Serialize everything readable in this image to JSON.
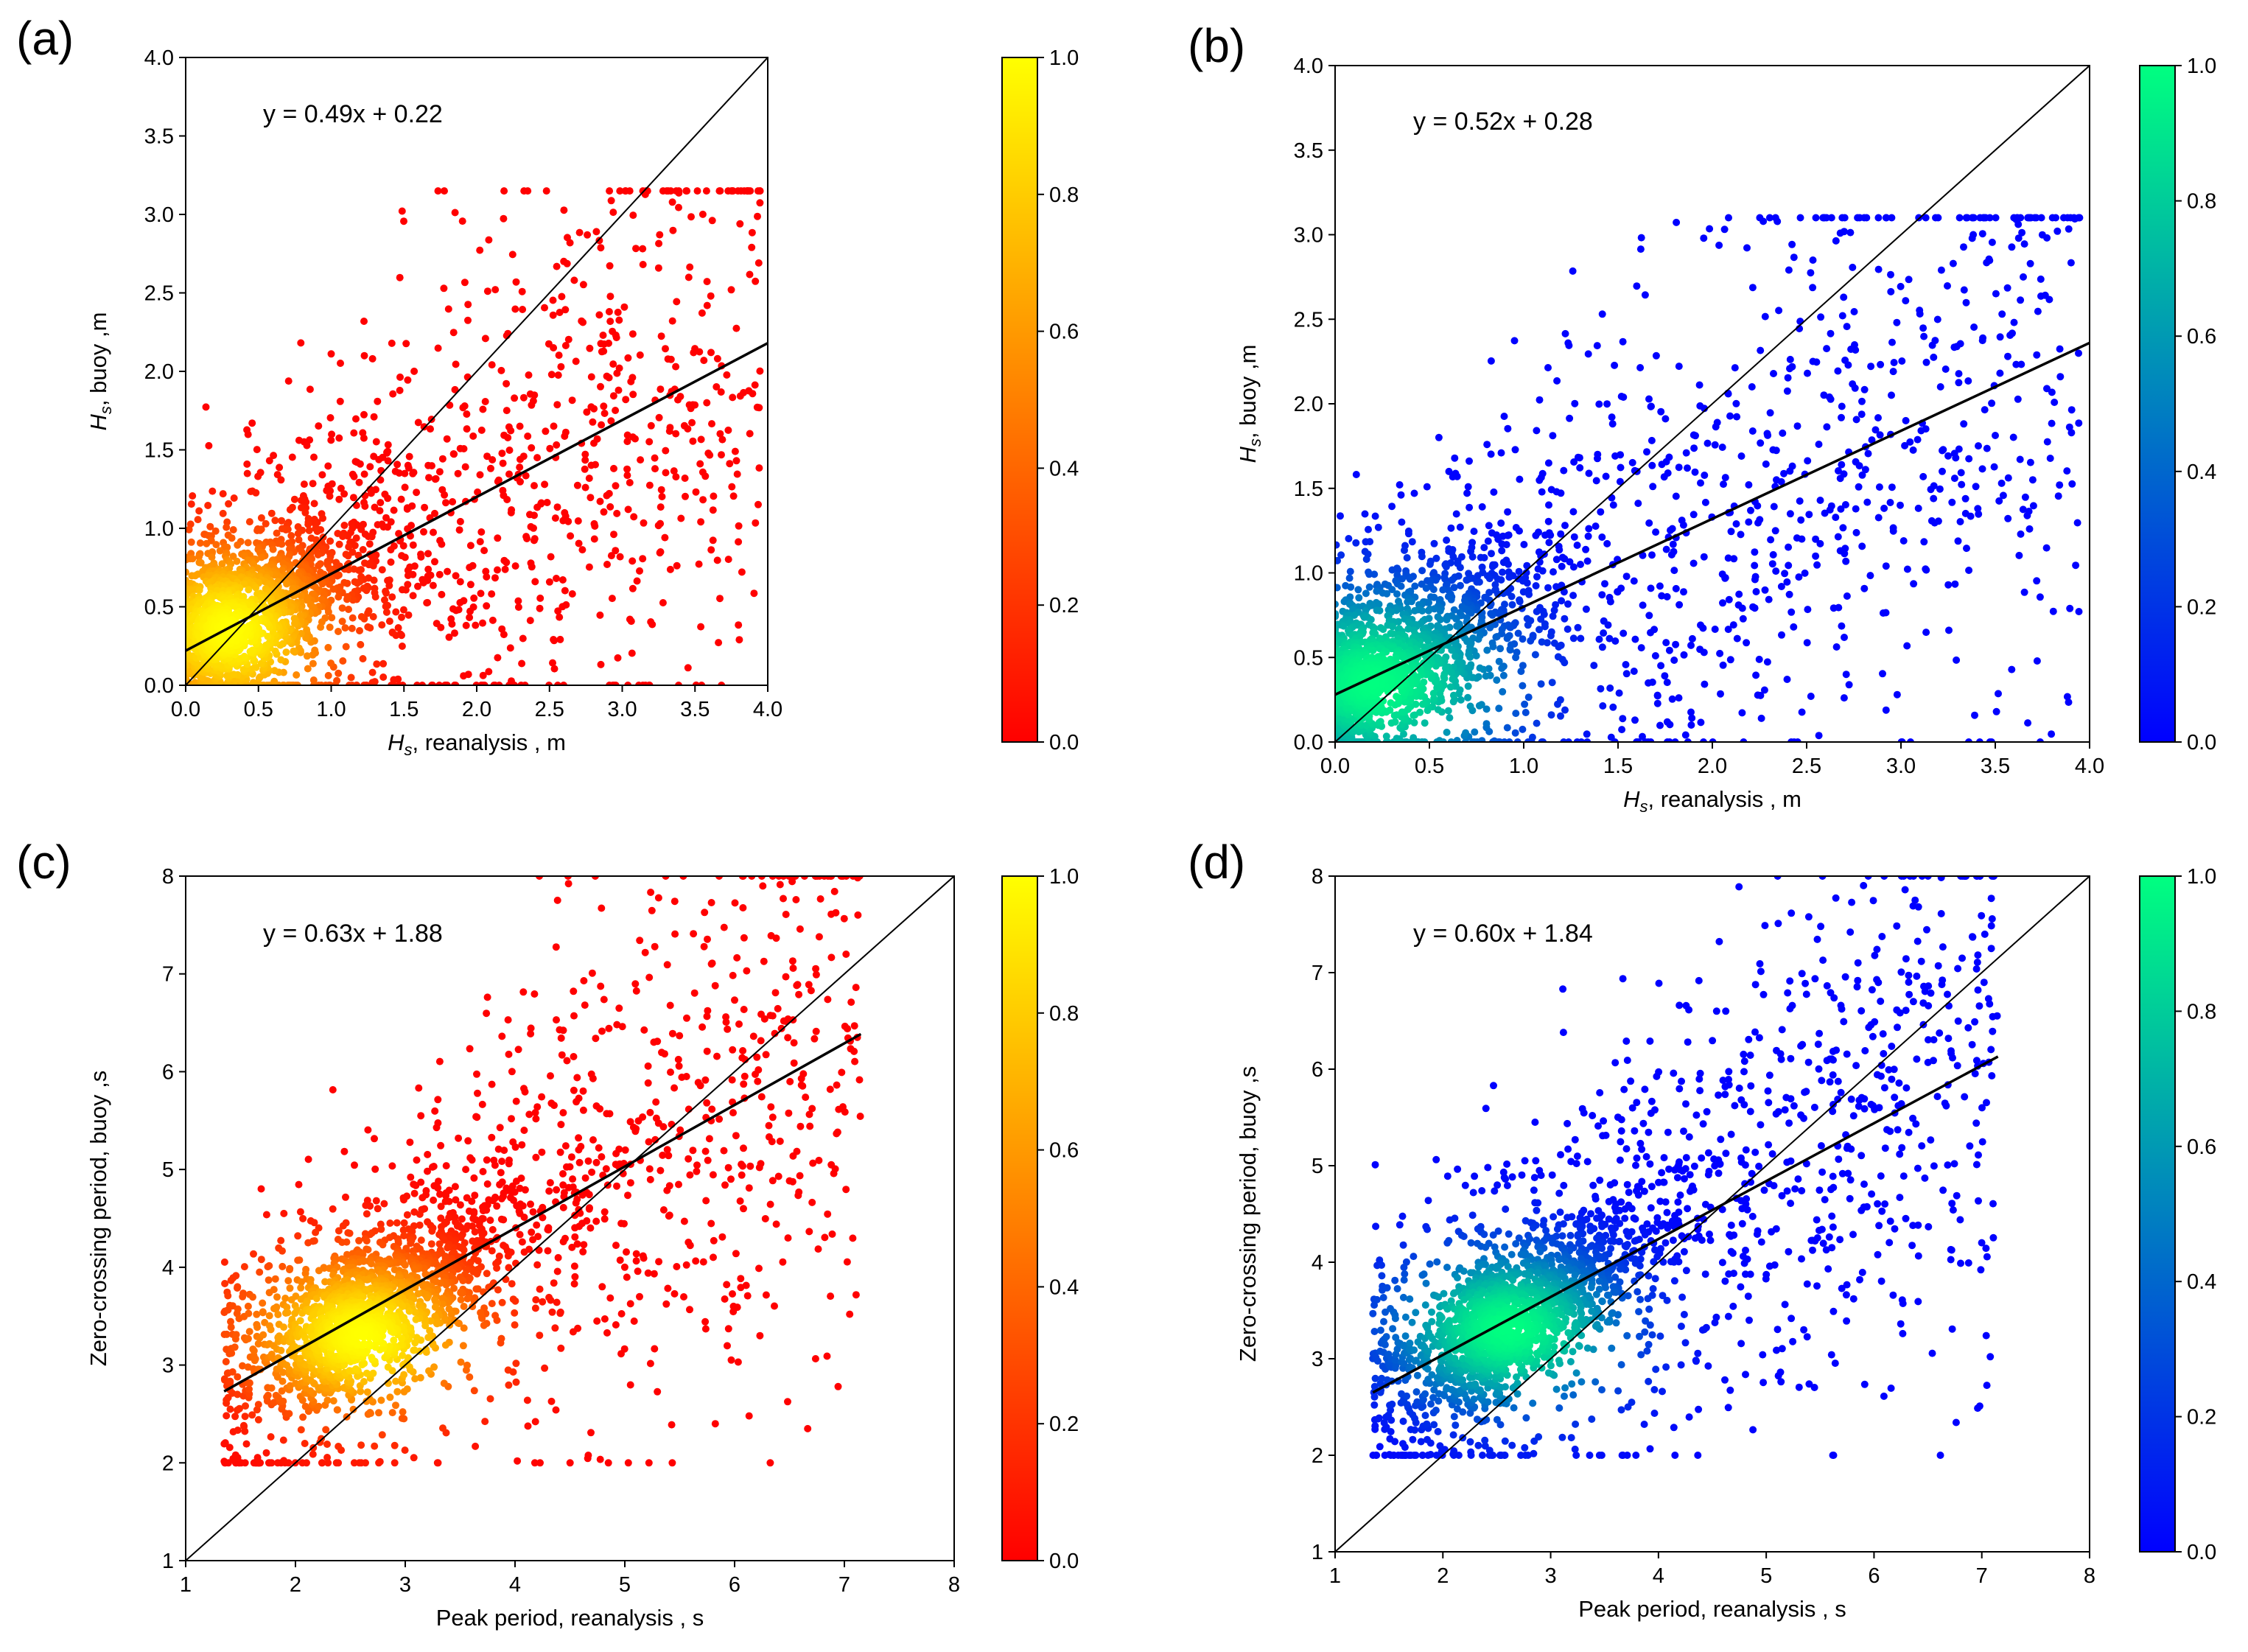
{
  "chart_data": [
    {
      "type": "scatter",
      "panel_label": "(a)",
      "equation": "y = 0.49x + 0.22",
      "xlabel_symbol": "H",
      "xlabel_sub": "s",
      "xlabel_text": ", reanalysis , m",
      "ylabel_symbol": "H",
      "ylabel_sub": "s",
      "ylabel_text": ", buoy ,m",
      "xlim": [
        0,
        4
      ],
      "ylim": [
        0,
        4
      ],
      "xticks": [
        "0.0",
        "0.5",
        "1.0",
        "1.5",
        "2.0",
        "2.5",
        "3.0",
        "3.5",
        "4.0"
      ],
      "yticks": [
        "0.0",
        "0.5",
        "1.0",
        "1.5",
        "2.0",
        "2.5",
        "3.0",
        "3.5",
        "4.0"
      ],
      "fit_line": {
        "slope": 0.49,
        "intercept": 0.22,
        "x_range": [
          0,
          4
        ]
      },
      "identity_line": true,
      "colormap": "autumn",
      "colormap_stops": [
        "#ff0000",
        "#ff8000",
        "#ffff00"
      ],
      "marker_color": "#ff0000",
      "colorbar_ticks": [
        "0.0",
        "0.2",
        "0.4",
        "0.6",
        "0.8",
        "1.0"
      ],
      "density_peak": [
        0.3,
        0.35
      ],
      "cloud": {
        "x_range": [
          0,
          3.95
        ],
        "y_range": [
          0,
          3.15
        ]
      }
    },
    {
      "type": "scatter",
      "panel_label": "(b)",
      "equation": "y = 0.52x + 0.28",
      "xlabel_symbol": "H",
      "xlabel_sub": "s",
      "xlabel_text": ", reanalysis , m",
      "ylabel_symbol": "H",
      "ylabel_sub": "s",
      "ylabel_text": ", buoy ,m",
      "xlim": [
        0,
        4
      ],
      "ylim": [
        0,
        4
      ],
      "xticks": [
        "0.0",
        "0.5",
        "1.0",
        "1.5",
        "2.0",
        "2.5",
        "3.0",
        "3.5",
        "4.0"
      ],
      "yticks": [
        "0.0",
        "0.5",
        "1.0",
        "1.5",
        "2.0",
        "2.5",
        "3.0",
        "3.5",
        "4.0"
      ],
      "fit_line": {
        "slope": 0.52,
        "intercept": 0.28,
        "x_range": [
          0,
          4
        ]
      },
      "identity_line": true,
      "colormap": "winter",
      "colormap_stops": [
        "#0000ff",
        "#0080c0",
        "#00ff80"
      ],
      "marker_color": "#0000ff",
      "colorbar_ticks": [
        "0.0",
        "0.2",
        "0.4",
        "0.6",
        "0.8",
        "1.0"
      ],
      "density_peak": [
        0.2,
        0.35
      ],
      "cloud": {
        "x_range": [
          0,
          3.95
        ],
        "y_range": [
          0,
          3.1
        ]
      }
    },
    {
      "type": "scatter",
      "panel_label": "(c)",
      "equation": "y = 0.63x + 1.88",
      "xlabel_text": "Peak period, reanalysis  , s",
      "ylabel_text": "Zero-crossing period, buoy ,s",
      "xlim": [
        1,
        8
      ],
      "ylim": [
        1,
        8
      ],
      "xticks": [
        "1",
        "2",
        "3",
        "4",
        "5",
        "6",
        "7",
        "8"
      ],
      "yticks": [
        "1",
        "2",
        "3",
        "4",
        "5",
        "6",
        "7",
        "8"
      ],
      "fit_line": {
        "slope": 0.63,
        "intercept": 1.88,
        "x_range": [
          1.35,
          7.15
        ]
      },
      "identity_line": true,
      "colormap": "autumn",
      "colormap_stops": [
        "#ff0000",
        "#ff8000",
        "#ffff00"
      ],
      "marker_color": "#ff0000",
      "colorbar_ticks": [
        "0.0",
        "0.2",
        "0.4",
        "0.6",
        "0.8",
        "1.0"
      ],
      "density_peak": [
        2.6,
        3.3
      ],
      "cloud": {
        "x_range": [
          1.35,
          7.15
        ],
        "y_range": [
          2.0,
          8.0
        ]
      }
    },
    {
      "type": "scatter",
      "panel_label": "(d)",
      "equation": "y = 0.60x + 1.84",
      "xlabel_text": "Peak period, reanalysis , s",
      "ylabel_text": "Zero-crossing period, buoy ,s",
      "xlim": [
        1,
        8
      ],
      "ylim": [
        1,
        8
      ],
      "xticks": [
        "1",
        "2",
        "3",
        "4",
        "5",
        "6",
        "7",
        "8"
      ],
      "yticks": [
        "1",
        "2",
        "3",
        "4",
        "5",
        "6",
        "7",
        "8"
      ],
      "fit_line": {
        "slope": 0.6,
        "intercept": 1.84,
        "x_range": [
          1.35,
          7.15
        ]
      },
      "identity_line": true,
      "colormap": "winter",
      "colormap_stops": [
        "#0000ff",
        "#0080c0",
        "#00ff80"
      ],
      "marker_color": "#0000ff",
      "colorbar_ticks": [
        "0.0",
        "0.2",
        "0.4",
        "0.6",
        "0.8",
        "1.0"
      ],
      "density_peak": [
        2.6,
        3.3
      ],
      "cloud": {
        "x_range": [
          1.35,
          7.15
        ],
        "y_range": [
          2.0,
          8.0
        ]
      }
    }
  ]
}
